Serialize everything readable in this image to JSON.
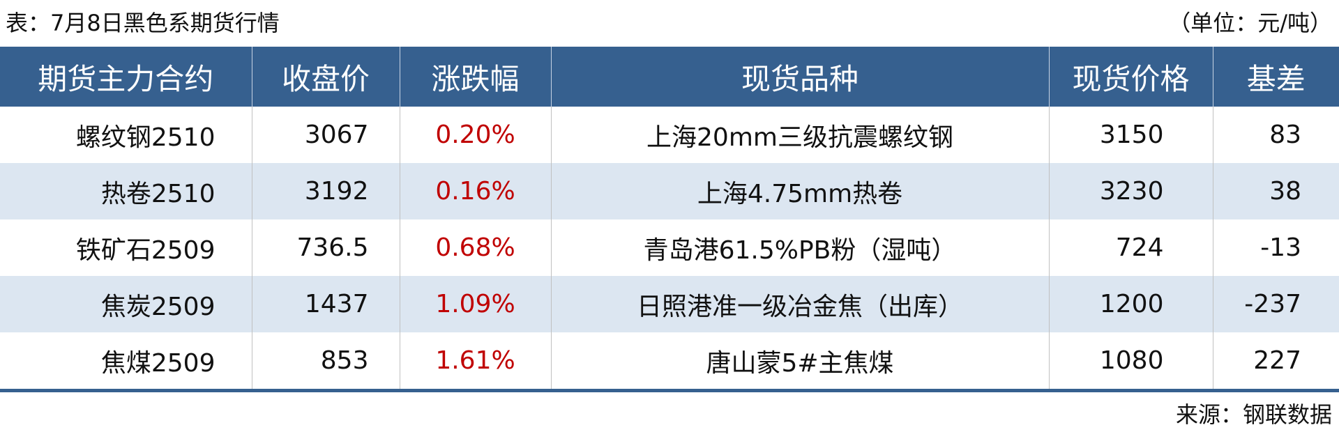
{
  "title": "表：7月8日黑色系期货行情",
  "unit": "（单位：元/吨）",
  "columns": [
    "期货主力合约",
    "收盘价",
    "涨跌幅",
    "现货品种",
    "现货价格",
    "基差"
  ],
  "rows": [
    [
      "螺纹钢2510",
      "3067",
      "0.20%",
      "上海20mm三级抗震螺纹钢",
      "3150",
      "83"
    ],
    [
      "热卷2510",
      "3192",
      "0.16%",
      "上海4.75mm热卷",
      "3230",
      "38"
    ],
    [
      "铁矿石2509",
      "736.5",
      "0.68%",
      "青岛港61.5%PB粉（湿吨）",
      "724",
      "-13"
    ],
    [
      "焦炭2509",
      "1437",
      "1.09%",
      "日照港准一级冶金焦（出库）",
      "1200",
      "-237"
    ],
    [
      "焦煤2509",
      "853",
      "1.61%",
      "唐山蒙5#主焦煤",
      "1080",
      "227"
    ]
  ],
  "source": "来源：钢联数据",
  "colors": {
    "header": "#36608f",
    "alt_row": "#dce6f1",
    "change": "#c00000"
  }
}
